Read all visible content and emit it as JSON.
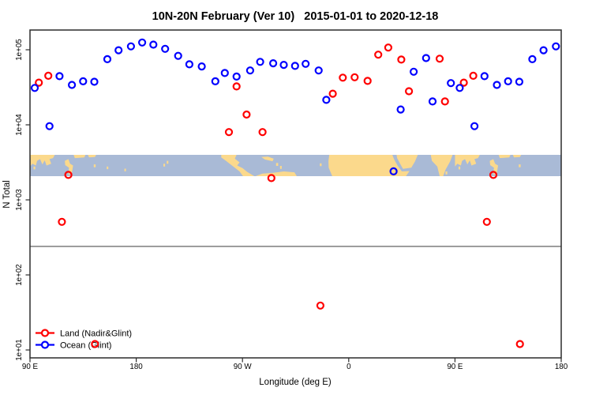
{
  "title": "10N-20N February (Ver 10)   2015-01-01 to 2020-12-18",
  "chart_data": {
    "type": "scatter",
    "title": "10N-20N February (Ver 10)   2015-01-01 to 2020-12-18",
    "xlabel": "Longitude (deg E)",
    "ylabel": "N Total",
    "x_axis": {
      "note": "longitude plotted eastward from 90E and wrapping past 180 to 180 again; points between 90E and 180E are drawn twice",
      "range": [
        90,
        540
      ],
      "tick_values": [
        90,
        180,
        270,
        360,
        450,
        540
      ],
      "tick_labels": [
        "90 E",
        "180",
        "90 W",
        "0",
        "90 E",
        "180"
      ]
    },
    "y_axis": {
      "scale": "log10",
      "range": [
        7.9,
        183000
      ],
      "tick_values": [
        10,
        100,
        1000,
        10000,
        100000
      ],
      "tick_labels": [
        "1e+01",
        "1e+02",
        "1e+03",
        "1e+04",
        "1e+05"
      ]
    },
    "legend": {
      "position": "bottom-left",
      "items": [
        {
          "label": "Land (Nadir&Glint)",
          "color": "#FF0000"
        },
        {
          "label": "Ocean (Glint)",
          "color": "#0000FF"
        }
      ]
    },
    "threshold_line": {
      "value": 240,
      "color": "#8f8f8f"
    },
    "map_band": {
      "role": "world coastline strip for the 10N-20N latitude band drawn across the plot",
      "value_top": 3980,
      "value_bottom": 2070,
      "ocean_color": "#A9BAD6",
      "land_color": "#FBD98C"
    },
    "series": [
      {
        "name": "Land (Nadir&Glint)",
        "color": "#FF0000",
        "points": [
          [
            97.5,
            36500
          ],
          [
            457.5,
            36500
          ],
          [
            105.5,
            45000
          ],
          [
            465.5,
            45000
          ],
          [
            117,
            510
          ],
          [
            477,
            510
          ],
          [
            122.5,
            2150
          ],
          [
            482.5,
            2150
          ],
          [
            145,
            12
          ],
          [
            505,
            12
          ],
          [
            258.5,
            8000
          ],
          [
            265,
            32500
          ],
          [
            273.5,
            13700
          ],
          [
            287,
            8000
          ],
          [
            294.5,
            1950
          ],
          [
            336,
            39
          ],
          [
            346.5,
            26000
          ],
          [
            355,
            42500
          ],
          [
            365,
            43000
          ],
          [
            376,
            38500
          ],
          [
            385,
            86000
          ],
          [
            393.5,
            107000
          ],
          [
            404.5,
            74000
          ],
          [
            411,
            28000
          ],
          [
            437,
            76000
          ],
          [
            441.5,
            20500
          ]
        ]
      },
      {
        "name": "Ocean (Glint)",
        "color": "#0000FF",
        "points": [
          [
            94,
            31000
          ],
          [
            454,
            31000
          ],
          [
            106.5,
            9600
          ],
          [
            466.5,
            9600
          ],
          [
            115,
            44500
          ],
          [
            475,
            44500
          ],
          [
            125.5,
            34000
          ],
          [
            485.5,
            34000
          ],
          [
            135,
            38000
          ],
          [
            495,
            38000
          ],
          [
            144.5,
            37500
          ],
          [
            504.5,
            37500
          ],
          [
            155.5,
            75000
          ],
          [
            515.5,
            75000
          ],
          [
            165,
            98500
          ],
          [
            525,
            98500
          ],
          [
            175.5,
            111000
          ],
          [
            535.5,
            111000
          ],
          [
            185,
            125000
          ],
          [
            194.5,
            117000
          ],
          [
            204.5,
            103000
          ],
          [
            215.5,
            83000
          ],
          [
            225,
            64000
          ],
          [
            235.5,
            60000
          ],
          [
            247,
            38000
          ],
          [
            255,
            49000
          ],
          [
            265,
            44000
          ],
          [
            276.5,
            53000
          ],
          [
            285,
            69000
          ],
          [
            296,
            66000
          ],
          [
            305,
            63000
          ],
          [
            314.5,
            61000
          ],
          [
            323.5,
            65000
          ],
          [
            334.5,
            53000
          ],
          [
            341,
            21500
          ],
          [
            398,
            2400
          ],
          [
            404,
            16000
          ],
          [
            415,
            51000
          ],
          [
            425.5,
            77500
          ],
          [
            431,
            20500
          ],
          [
            446.5,
            36000
          ]
        ]
      }
    ]
  }
}
